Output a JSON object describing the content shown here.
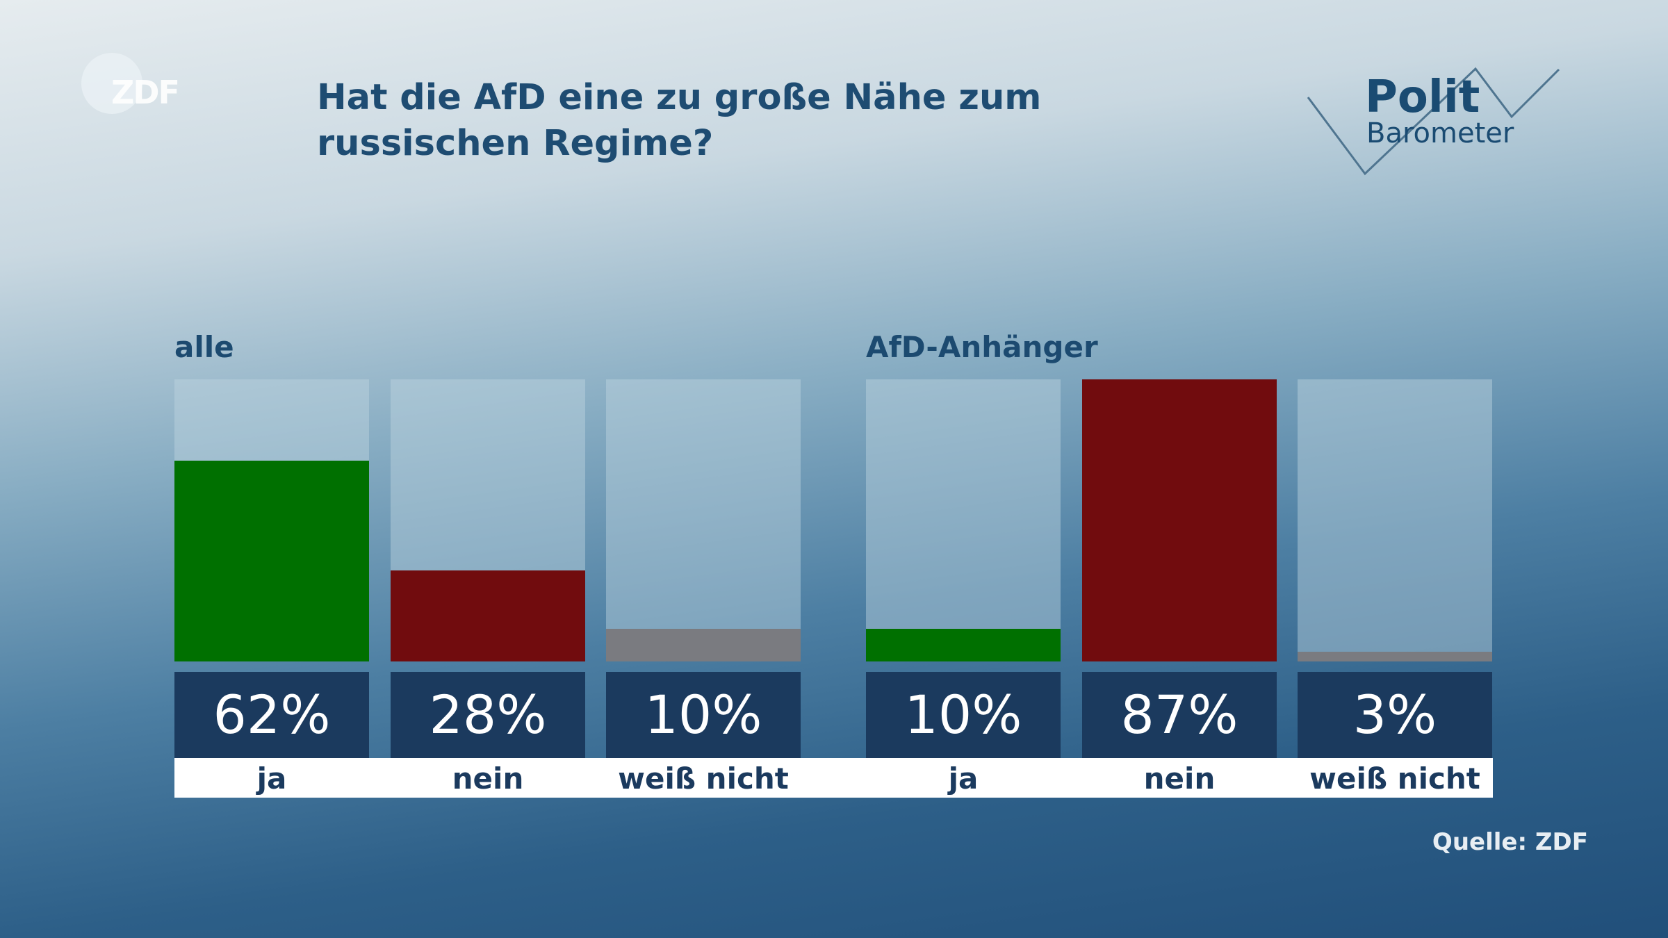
{
  "logo_left": "ZDF",
  "logo_right": {
    "line1": "Polit",
    "line2": "Barometer"
  },
  "source": "Quelle: ZDF",
  "colors": {
    "ja": "#007000",
    "nein": "#710c0e",
    "weiss_nicht": "#7a7b80",
    "value_box": "#1b3a5e"
  },
  "chart_data": {
    "type": "bar",
    "title": "Hat die AfD eine zu große Nähe zum russischen Regime?",
    "categories": [
      "ja",
      "nein",
      "weiß nicht"
    ],
    "groups": [
      {
        "name": "alle",
        "values": [
          62,
          28,
          10
        ],
        "labels": [
          "62%",
          "28%",
          "10%"
        ]
      },
      {
        "name": "AfD-Anhänger",
        "values": [
          10,
          87,
          3
        ],
        "labels": [
          "10%",
          "87%",
          "3%"
        ]
      }
    ],
    "unit": "%",
    "grid": false
  }
}
